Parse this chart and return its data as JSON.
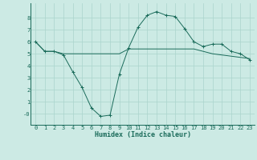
{
  "x": [
    0,
    1,
    2,
    3,
    4,
    5,
    6,
    7,
    8,
    9,
    10,
    11,
    12,
    13,
    14,
    15,
    16,
    17,
    18,
    19,
    20,
    21,
    22,
    23
  ],
  "y_humidex": [
    6.0,
    5.2,
    5.2,
    4.9,
    3.5,
    2.2,
    0.5,
    -0.2,
    -0.1,
    3.3,
    5.5,
    7.2,
    8.2,
    8.5,
    8.2,
    8.1,
    7.1,
    6.0,
    5.6,
    5.8,
    5.8,
    5.2,
    5.0,
    4.5
  ],
  "y_flat": [
    6.0,
    5.2,
    5.2,
    5.0,
    5.0,
    5.0,
    5.0,
    5.0,
    5.0,
    5.0,
    5.4,
    5.4,
    5.4,
    5.4,
    5.4,
    5.4,
    5.4,
    5.4,
    5.2,
    5.0,
    4.9,
    4.8,
    4.7,
    4.6
  ],
  "line_color": "#1a6b5a",
  "bg_color": "#cceae4",
  "grid_color": "#aad4cc",
  "xlabel": "Humidex (Indice chaleur)",
  "xticks": [
    0,
    1,
    2,
    3,
    4,
    5,
    6,
    7,
    8,
    9,
    10,
    11,
    12,
    13,
    14,
    15,
    16,
    17,
    18,
    19,
    20,
    21,
    22,
    23
  ],
  "yticks": [
    0,
    1,
    2,
    3,
    4,
    5,
    6,
    7,
    8
  ],
  "ytick_labels": [
    "-0",
    "1",
    "2",
    "3",
    "4",
    "5",
    "6",
    "7",
    "8"
  ],
  "ylim": [
    -0.9,
    9.2
  ],
  "xlim": [
    -0.5,
    23.5
  ]
}
